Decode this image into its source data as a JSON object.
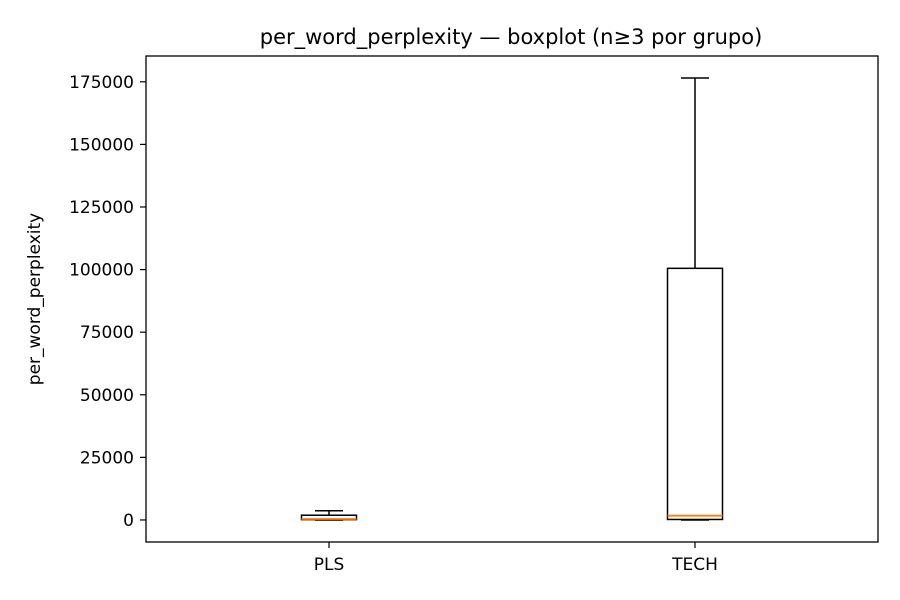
{
  "chart_data": {
    "type": "boxplot",
    "title": "per_word_perplexity — boxplot (n≥3 por grupo)",
    "xlabel": "",
    "ylabel": "per_word_perplexity",
    "ylim": [
      -8800,
      185300
    ],
    "yticks": [
      0,
      25000,
      50000,
      75000,
      100000,
      125000,
      150000,
      175000
    ],
    "ytick_labels": [
      "0",
      "25000",
      "50000",
      "75000",
      "100000",
      "125000",
      "150000",
      "175000"
    ],
    "categories": [
      "PLS",
      "TECH"
    ],
    "boxes": [
      {
        "label": "PLS",
        "whisker_low": 0,
        "q1": 150,
        "median": 400,
        "q3": 1900,
        "whisker_high": 3700
      },
      {
        "label": "TECH",
        "whisker_low": 0,
        "q1": 200,
        "median": 1700,
        "q3": 100500,
        "whisker_high": 176500
      }
    ],
    "colors": {
      "box": "#000000",
      "median": "#ff7f0e",
      "background": "#ffffff"
    },
    "grid": false
  }
}
